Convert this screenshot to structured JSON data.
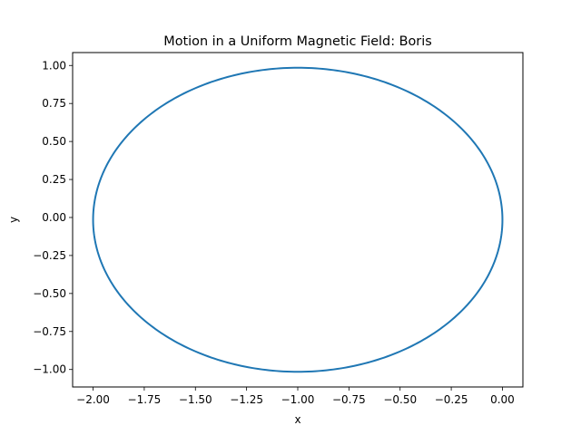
{
  "chart_data": {
    "type": "line",
    "title": "Motion in a Uniform Magnetic Field: Boris",
    "xlabel": "x",
    "ylabel": "y",
    "xlim": [
      -2.1,
      0.1
    ],
    "ylim": [
      -1.115,
      1.085
    ],
    "x_ticks": [
      -2.0,
      -1.75,
      -1.5,
      -1.25,
      -1.0,
      -0.75,
      -0.5,
      -0.25,
      0.0
    ],
    "x_tick_labels": [
      "−2.00",
      "−1.75",
      "−1.50",
      "−1.25",
      "−1.00",
      "−0.75",
      "−0.50",
      "−0.25",
      "0.00"
    ],
    "y_ticks": [
      -1.0,
      -0.75,
      -0.5,
      -0.25,
      0.0,
      0.25,
      0.5,
      0.75,
      1.0
    ],
    "y_tick_labels": [
      "−1.00",
      "−0.75",
      "−0.50",
      "−0.25",
      "0.00",
      "0.25",
      "0.50",
      "0.75",
      "1.00"
    ],
    "grid": false,
    "series": [
      {
        "color": "#1f77b4",
        "shape": "circle",
        "center": [
          -1.0,
          -0.015
        ],
        "radius": 1.0
      }
    ]
  }
}
